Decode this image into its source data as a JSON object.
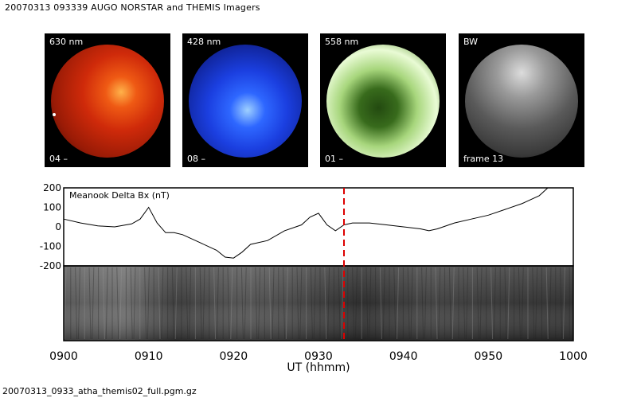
{
  "title": "20070313 093339 AUGO NORSTAR and THEMIS Imagers",
  "panels": [
    {
      "top_label": "630 nm",
      "bottom_label": "04 –"
    },
    {
      "top_label": "428 nm",
      "bottom_label": "08 –"
    },
    {
      "top_label": "558 nm",
      "bottom_label": "01 –"
    },
    {
      "top_label": "BW",
      "bottom_label": "frame 13"
    }
  ],
  "footer": "20070313_0933_atha_themis02_full.pgm.gz",
  "colors": {
    "marker": "#dd0000",
    "trace": "#000000"
  },
  "chart_data": {
    "type": "line",
    "title": "",
    "inset_label": "Meanook Delta Bx (nT)",
    "xlabel": "UT (hhmm)",
    "ylabel": "",
    "xlim": [
      "0900",
      "1000"
    ],
    "ylim": [
      -200,
      200
    ],
    "x_ticks": [
      "0900",
      "0910",
      "0920",
      "0930",
      "0940",
      "0950",
      "1000"
    ],
    "y_ticks": [
      200,
      100,
      0,
      -100,
      -200
    ],
    "current_time": "0933",
    "series": [
      {
        "x": [
          "0900",
          "0902",
          "0904",
          "0906",
          "0908",
          "0909",
          "0910",
          "0911",
          "0912",
          "0913",
          "0914",
          "0916",
          "0918",
          "0919",
          "0920",
          "0921",
          "0922",
          "0924",
          "0926",
          "0928",
          "0929",
          "0930",
          "0931",
          "0932",
          "0933",
          "0934",
          "0936",
          "0938",
          "0940",
          "0942",
          "0943",
          "0944",
          "0946",
          "0948",
          "0950",
          "0952",
          "0954",
          "0956",
          "0957",
          "0958",
          "1000"
        ],
        "values": [
          40,
          20,
          5,
          0,
          15,
          40,
          100,
          20,
          -30,
          -30,
          -40,
          -80,
          -120,
          -155,
          -160,
          -130,
          -90,
          -70,
          -20,
          10,
          50,
          70,
          10,
          -20,
          10,
          20,
          20,
          10,
          0,
          -10,
          -20,
          -10,
          20,
          40,
          60,
          90,
          120,
          160,
          200,
          200,
          200
        ]
      }
    ]
  }
}
